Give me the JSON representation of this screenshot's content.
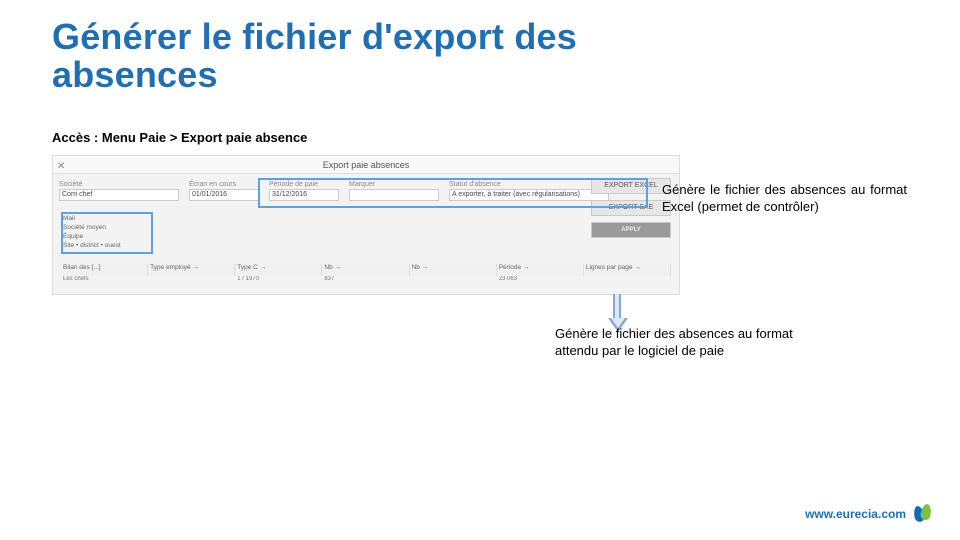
{
  "title_line1": "Générer le fichier d'export des",
  "title_line2": "absences",
  "access_label": "Accès : Menu Paie > Export paie absence",
  "screenshot": {
    "header": "Export paie absences",
    "close": "✕",
    "societe_label": "Société",
    "ecran_label": "Écran en cours",
    "date1_value": "01/01/2016",
    "date2_value": "31/12/2016",
    "periode_label": "Période de paie",
    "marquer_label": "Marquer",
    "statut_label": "Statut d'absence",
    "statut_value": "A exporter, à traiter (avec régularisations)",
    "corrichef": "Corri chef",
    "list1": "Mail",
    "list2": "Société moyen",
    "list3": "Équipe",
    "list4": "Site • district • ouest",
    "col_bilan": "Bilan des [...]",
    "col_type": "Type employé →",
    "col_typec": "Type C →",
    "col_nb": "Nb →",
    "col_nb2": "Nb →",
    "col_periode": "Période →",
    "col_line": "Lignes par page →",
    "r_name": "Les chefs",
    "r_v1": "1 / 1970",
    "r_v2": "837",
    "r_v3": "23 063",
    "btn_export_excel": "EXPORT EXCEL",
    "btn_export_sae": "EXPORT SAE",
    "btn_apply": "APPLY"
  },
  "callout1": "Génère le fichier des absences au format Excel (permet de contrôler)",
  "callout2": "Génère le fichier des absences au format attendu par le logiciel de paie",
  "footer_url": "www.eurecia.com"
}
